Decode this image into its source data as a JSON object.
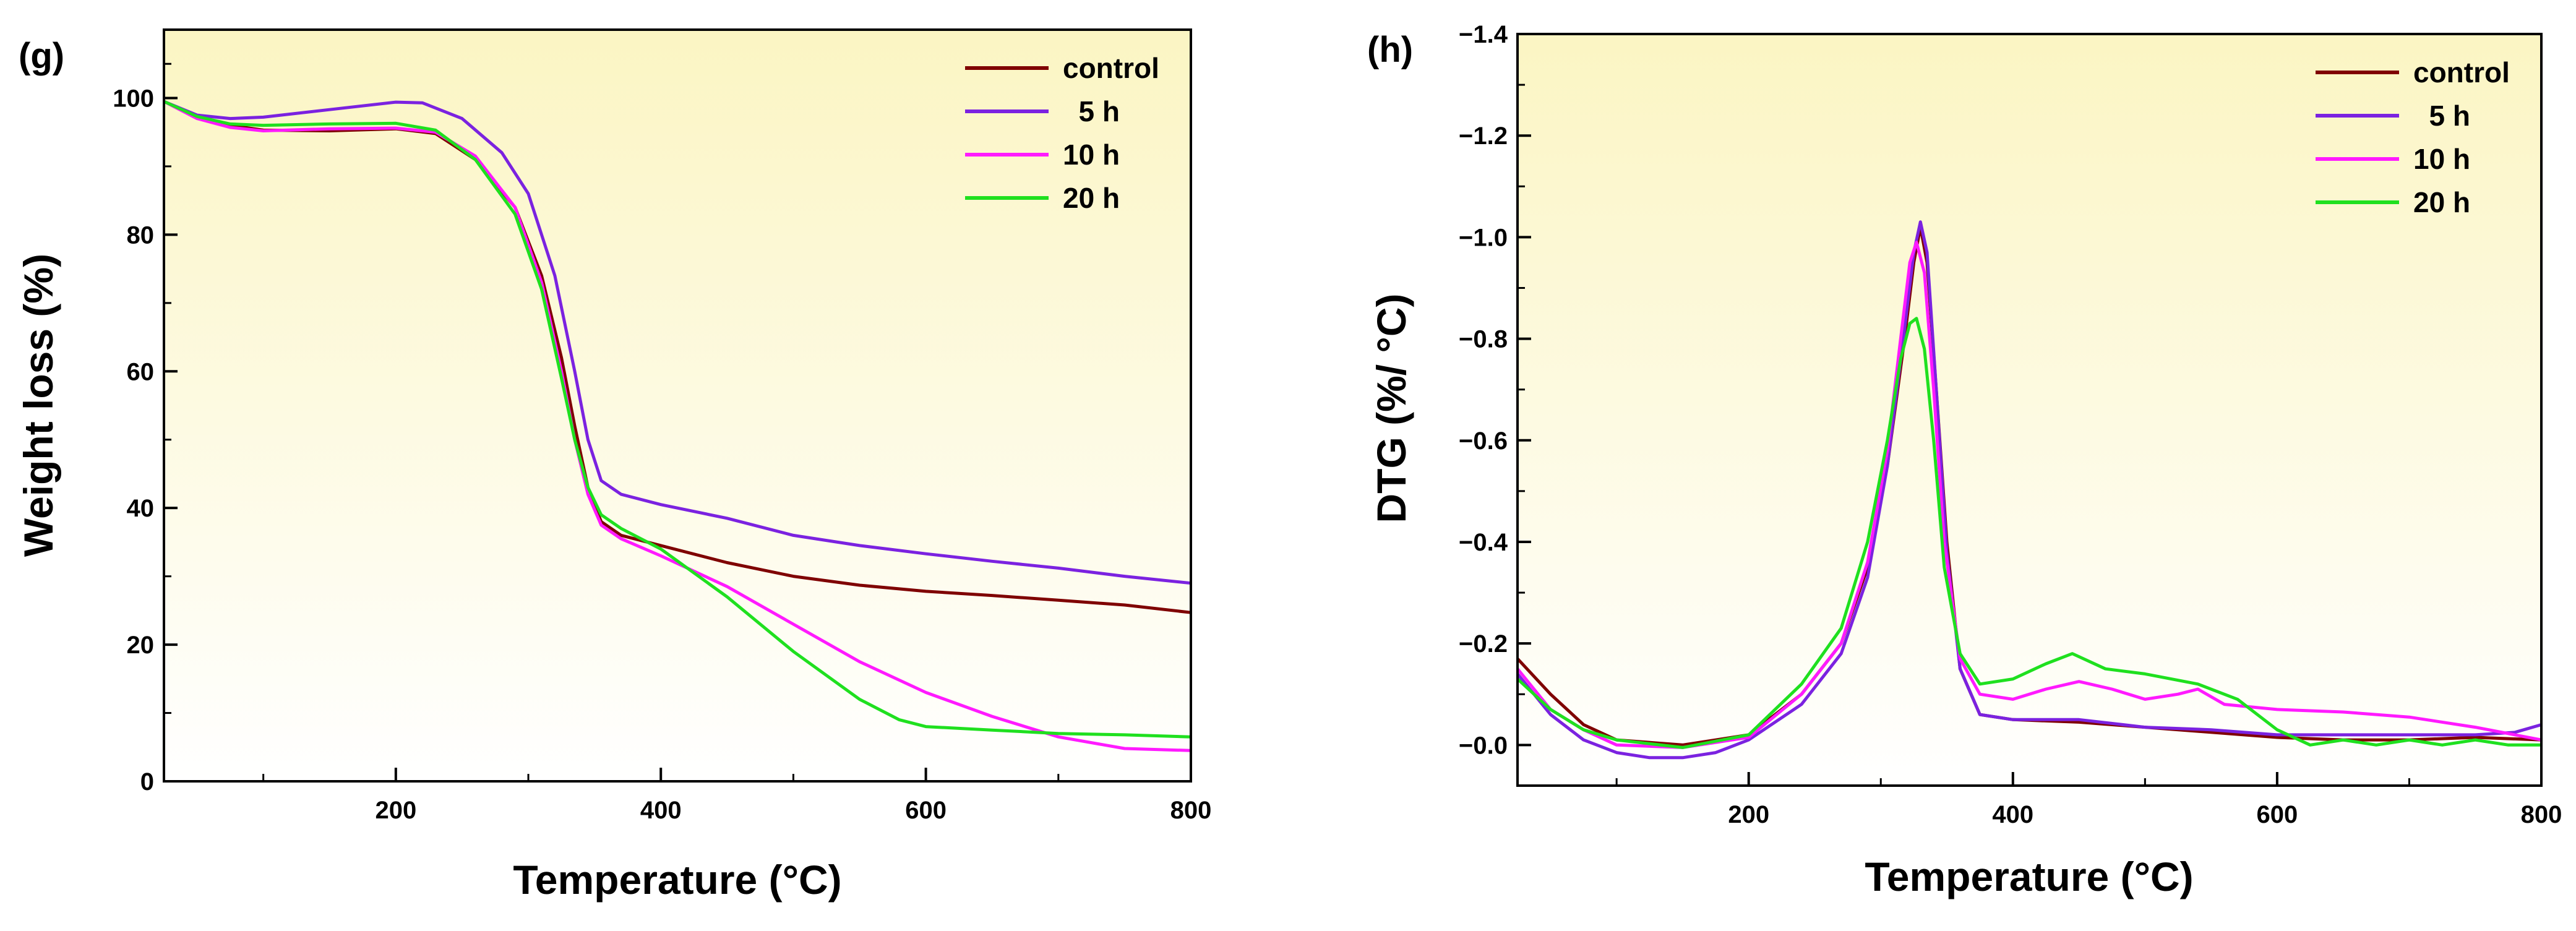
{
  "chart_data": [
    {
      "type": "line",
      "panel_label": "(g)",
      "xlabel": "Temperature (°C)",
      "ylabel": "Weight loss (%)",
      "xlim": [
        25,
        800
      ],
      "ylim": [
        0,
        110
      ],
      "x_ticks": [
        200,
        400,
        600,
        800
      ],
      "y_ticks": [
        0,
        20,
        40,
        60,
        80,
        100
      ],
      "legend_position": "top-right",
      "background": "gradient light yellow to white",
      "series": [
        {
          "name": "control",
          "legend_label": "control",
          "color": "#7f0000",
          "points": [
            [
              25,
              99.5
            ],
            [
              50,
              97.2
            ],
            [
              75,
              96
            ],
            [
              100,
              95.3
            ],
            [
              150,
              95.2
            ],
            [
              200,
              95.5
            ],
            [
              230,
              94.8
            ],
            [
              260,
              91
            ],
            [
              290,
              84
            ],
            [
              310,
              74
            ],
            [
              325,
              62
            ],
            [
              335,
              52
            ],
            [
              345,
              43
            ],
            [
              355,
              38
            ],
            [
              370,
              36
            ],
            [
              400,
              34.5
            ],
            [
              450,
              32
            ],
            [
              500,
              30
            ],
            [
              550,
              28.7
            ],
            [
              600,
              27.8
            ],
            [
              650,
              27.2
            ],
            [
              700,
              26.5
            ],
            [
              750,
              25.8
            ],
            [
              800,
              24.7
            ]
          ]
        },
        {
          "name": "5 h",
          "legend_label": "5 h",
          "color": "#7b22e0",
          "points": [
            [
              25,
              99.5
            ],
            [
              50,
              97.5
            ],
            [
              75,
              97
            ],
            [
              100,
              97.2
            ],
            [
              150,
              98.3
            ],
            [
              200,
              99.4
            ],
            [
              220,
              99.3
            ],
            [
              250,
              97
            ],
            [
              280,
              92
            ],
            [
              300,
              86
            ],
            [
              320,
              74
            ],
            [
              335,
              60
            ],
            [
              345,
              50
            ],
            [
              355,
              44
            ],
            [
              370,
              42
            ],
            [
              400,
              40.5
            ],
            [
              450,
              38.5
            ],
            [
              500,
              36
            ],
            [
              550,
              34.5
            ],
            [
              600,
              33.3
            ],
            [
              650,
              32.2
            ],
            [
              700,
              31.2
            ],
            [
              750,
              30
            ],
            [
              800,
              29
            ]
          ]
        },
        {
          "name": "10 h",
          "legend_label": "10 h",
          "color": "#ff1aff",
          "points": [
            [
              25,
              99.5
            ],
            [
              50,
              97
            ],
            [
              75,
              95.7
            ],
            [
              100,
              95.2
            ],
            [
              150,
              95.5
            ],
            [
              200,
              95.6
            ],
            [
              230,
              95
            ],
            [
              260,
              91.5
            ],
            [
              290,
              84
            ],
            [
              310,
              73
            ],
            [
              325,
              60
            ],
            [
              335,
              50
            ],
            [
              345,
              42
            ],
            [
              355,
              37.5
            ],
            [
              370,
              35.5
            ],
            [
              400,
              33
            ],
            [
              450,
              28.5
            ],
            [
              500,
              23
            ],
            [
              550,
              17.5
            ],
            [
              600,
              13
            ],
            [
              650,
              9.5
            ],
            [
              700,
              6.5
            ],
            [
              750,
              4.8
            ],
            [
              800,
              4.5
            ]
          ]
        },
        {
          "name": "20 h",
          "legend_label": "20 h",
          "color": "#1fe01f",
          "points": [
            [
              25,
              99.5
            ],
            [
              50,
              97.3
            ],
            [
              75,
              96.2
            ],
            [
              100,
              96
            ],
            [
              150,
              96.2
            ],
            [
              200,
              96.3
            ],
            [
              230,
              95.3
            ],
            [
              260,
              91
            ],
            [
              290,
              83
            ],
            [
              310,
              72
            ],
            [
              325,
              59
            ],
            [
              335,
              50
            ],
            [
              345,
              43
            ],
            [
              355,
              39
            ],
            [
              370,
              37
            ],
            [
              400,
              34
            ],
            [
              450,
              27
            ],
            [
              500,
              19
            ],
            [
              550,
              12
            ],
            [
              580,
              9
            ],
            [
              600,
              8
            ],
            [
              650,
              7.5
            ],
            [
              700,
              7
            ],
            [
              750,
              6.8
            ],
            [
              800,
              6.5
            ]
          ]
        }
      ]
    },
    {
      "type": "line",
      "panel_label": "(h)",
      "xlabel": "Temperature (°C)",
      "ylabel": "DTG (%/ °C)",
      "xlim": [
        25,
        800
      ],
      "ylim": [
        0.08,
        -1.4
      ],
      "x_ticks": [
        200,
        400,
        600,
        800
      ],
      "y_ticks": [
        -1.4,
        -1.2,
        -1.0,
        -0.8,
        -0.6,
        -0.4,
        -0.2,
        0.0
      ],
      "y_tick_labels": [
        "−1.4",
        "−1.2",
        "−1.0",
        "−0.8",
        "−0.6",
        "−0.4",
        "−0.2",
        "−0.0"
      ],
      "y_inverted": true,
      "legend_position": "top-right",
      "background": "gradient light yellow to white",
      "series": [
        {
          "name": "control",
          "legend_label": "control",
          "color": "#7f0000",
          "points": [
            [
              25,
              -0.17
            ],
            [
              50,
              -0.1
            ],
            [
              75,
              -0.04
            ],
            [
              100,
              -0.01
            ],
            [
              150,
              0.0
            ],
            [
              200,
              -0.02
            ],
            [
              240,
              -0.1
            ],
            [
              270,
              -0.2
            ],
            [
              290,
              -0.35
            ],
            [
              305,
              -0.55
            ],
            [
              318,
              -0.8
            ],
            [
              325,
              -0.95
            ],
            [
              330,
              -1.02
            ],
            [
              335,
              -0.95
            ],
            [
              342,
              -0.7
            ],
            [
              350,
              -0.4
            ],
            [
              360,
              -0.15
            ],
            [
              375,
              -0.06
            ],
            [
              400,
              -0.05
            ],
            [
              450,
              -0.045
            ],
            [
              500,
              -0.035
            ],
            [
              550,
              -0.025
            ],
            [
              600,
              -0.015
            ],
            [
              650,
              -0.01
            ],
            [
              700,
              -0.01
            ],
            [
              750,
              -0.015
            ],
            [
              800,
              -0.01
            ]
          ]
        },
        {
          "name": "5 h",
          "legend_label": "5 h",
          "color": "#7b22e0",
          "points": [
            [
              25,
              -0.14
            ],
            [
              50,
              -0.06
            ],
            [
              75,
              -0.01
            ],
            [
              100,
              0.015
            ],
            [
              125,
              0.025
            ],
            [
              150,
              0.025
            ],
            [
              175,
              0.015
            ],
            [
              200,
              -0.01
            ],
            [
              240,
              -0.08
            ],
            [
              270,
              -0.18
            ],
            [
              290,
              -0.33
            ],
            [
              305,
              -0.55
            ],
            [
              318,
              -0.82
            ],
            [
              325,
              -0.97
            ],
            [
              330,
              -1.03
            ],
            [
              335,
              -0.97
            ],
            [
              342,
              -0.7
            ],
            [
              350,
              -0.38
            ],
            [
              360,
              -0.15
            ],
            [
              375,
              -0.06
            ],
            [
              400,
              -0.05
            ],
            [
              450,
              -0.05
            ],
            [
              500,
              -0.035
            ],
            [
              550,
              -0.03
            ],
            [
              600,
              -0.02
            ],
            [
              650,
              -0.02
            ],
            [
              700,
              -0.02
            ],
            [
              750,
              -0.02
            ],
            [
              780,
              -0.025
            ],
            [
              800,
              -0.04
            ]
          ]
        },
        {
          "name": "10 h",
          "legend_label": "10 h",
          "color": "#ff1aff",
          "points": [
            [
              25,
              -0.15
            ],
            [
              50,
              -0.07
            ],
            [
              75,
              -0.03
            ],
            [
              100,
              0.0
            ],
            [
              150,
              0.005
            ],
            [
              200,
              -0.015
            ],
            [
              240,
              -0.1
            ],
            [
              270,
              -0.2
            ],
            [
              290,
              -0.36
            ],
            [
              305,
              -0.58
            ],
            [
              315,
              -0.8
            ],
            [
              322,
              -0.95
            ],
            [
              327,
              -0.99
            ],
            [
              333,
              -0.93
            ],
            [
              340,
              -0.7
            ],
            [
              348,
              -0.4
            ],
            [
              360,
              -0.17
            ],
            [
              375,
              -0.1
            ],
            [
              400,
              -0.09
            ],
            [
              425,
              -0.11
            ],
            [
              450,
              -0.125
            ],
            [
              475,
              -0.11
            ],
            [
              500,
              -0.09
            ],
            [
              525,
              -0.1
            ],
            [
              540,
              -0.11
            ],
            [
              560,
              -0.08
            ],
            [
              600,
              -0.07
            ],
            [
              650,
              -0.065
            ],
            [
              700,
              -0.055
            ],
            [
              750,
              -0.035
            ],
            [
              800,
              -0.01
            ]
          ]
        },
        {
          "name": "20 h",
          "legend_label": "20 h",
          "color": "#1fe01f",
          "points": [
            [
              25,
              -0.13
            ],
            [
              50,
              -0.07
            ],
            [
              75,
              -0.03
            ],
            [
              100,
              -0.01
            ],
            [
              150,
              0.005
            ],
            [
              200,
              -0.02
            ],
            [
              240,
              -0.12
            ],
            [
              270,
              -0.23
            ],
            [
              290,
              -0.4
            ],
            [
              305,
              -0.6
            ],
            [
              315,
              -0.76
            ],
            [
              322,
              -0.83
            ],
            [
              327,
              -0.84
            ],
            [
              333,
              -0.78
            ],
            [
              340,
              -0.6
            ],
            [
              348,
              -0.35
            ],
            [
              360,
              -0.18
            ],
            [
              375,
              -0.12
            ],
            [
              400,
              -0.13
            ],
            [
              425,
              -0.16
            ],
            [
              445,
              -0.18
            ],
            [
              470,
              -0.15
            ],
            [
              500,
              -0.14
            ],
            [
              540,
              -0.12
            ],
            [
              570,
              -0.09
            ],
            [
              600,
              -0.03
            ],
            [
              625,
              0.0
            ],
            [
              650,
              -0.01
            ],
            [
              675,
              0.0
            ],
            [
              700,
              -0.01
            ],
            [
              725,
              0.0
            ],
            [
              750,
              -0.01
            ],
            [
              775,
              0.0
            ],
            [
              800,
              0.0
            ]
          ]
        }
      ]
    }
  ]
}
